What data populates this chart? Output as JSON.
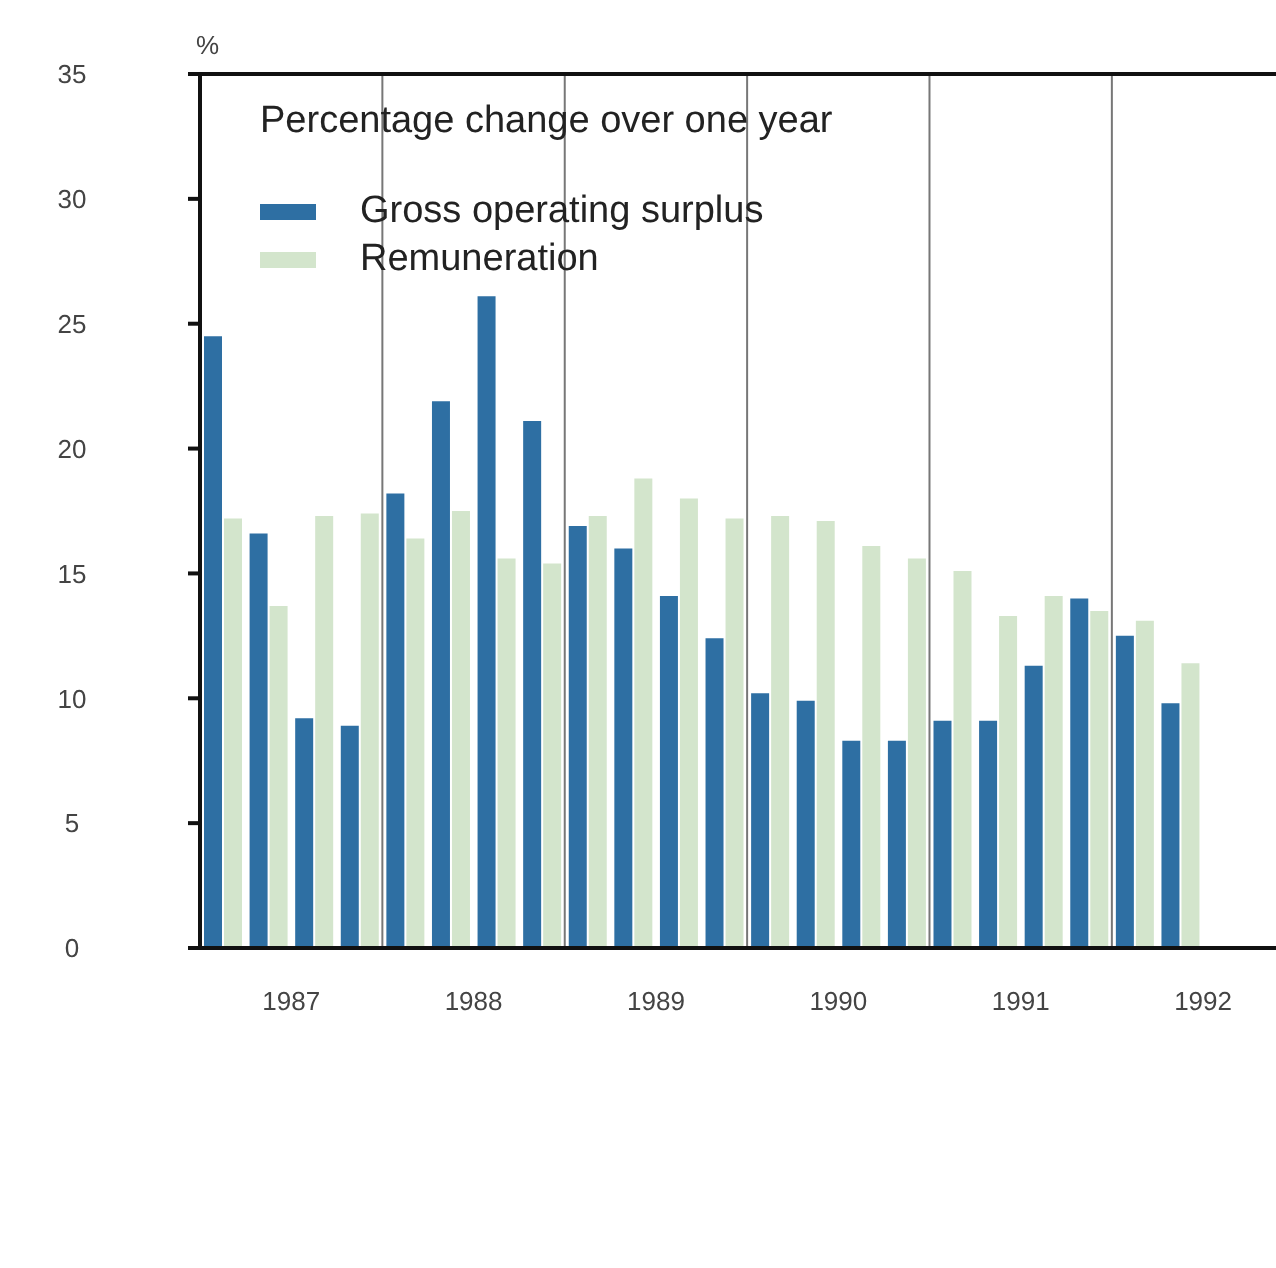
{
  "chart_data": {
    "type": "bar",
    "ylabel": "%",
    "legend_title": "Percentage change over one year",
    "x": [
      1987.125,
      1987.375,
      1987.625,
      1987.875,
      1988.125,
      1988.375,
      1988.625,
      1988.875,
      1989.125,
      1989.375,
      1989.625,
      1989.875,
      1990.125,
      1990.375,
      1990.625,
      1990.875,
      1991.125,
      1991.375,
      1991.625,
      1991.875,
      1992.125,
      1992.375
    ],
    "series": [
      {
        "name": "Gross operating surplus",
        "color": "#2e6fa3",
        "values": [
          24.5,
          16.6,
          9.2,
          8.9,
          18.2,
          21.9,
          26.1,
          21.1,
          16.9,
          16.0,
          14.1,
          12.4,
          10.2,
          9.9,
          8.3,
          8.3,
          9.1,
          9.1,
          11.3,
          14.0,
          12.5,
          9.8
        ]
      },
      {
        "name": "Remuneration",
        "color": "#d3e5cc",
        "values": [
          17.2,
          13.7,
          17.3,
          17.4,
          16.4,
          17.5,
          15.6,
          15.4,
          17.3,
          18.8,
          18.0,
          17.2,
          17.3,
          17.1,
          16.1,
          15.6,
          15.1,
          13.3,
          14.1,
          13.5,
          13.1,
          11.4
        ]
      }
    ],
    "xlim": [
      1987,
      1992.9
    ],
    "xticks": [
      {
        "value": 1987.5,
        "label": "1987"
      },
      {
        "value": 1988.5,
        "label": "1988"
      },
      {
        "value": 1989.5,
        "label": "1989"
      },
      {
        "value": 1990.5,
        "label": "1990"
      },
      {
        "value": 1991.5,
        "label": "1991"
      },
      {
        "value": 1992.5,
        "label": "1992"
      }
    ],
    "ylim": [
      0,
      35
    ],
    "yticks": [
      0,
      5,
      10,
      15,
      20,
      25,
      30,
      35
    ],
    "ref_lines": [
      {
        "axis": "x",
        "value": 1988,
        "color": "#777777"
      },
      {
        "axis": "x",
        "value": 1989,
        "color": "#777777"
      },
      {
        "axis": "x",
        "value": 1990,
        "color": "#777777"
      },
      {
        "axis": "x",
        "value": 1991,
        "color": "#777777"
      },
      {
        "axis": "x",
        "value": 1992,
        "color": "#777777"
      }
    ],
    "legend": "top left"
  }
}
